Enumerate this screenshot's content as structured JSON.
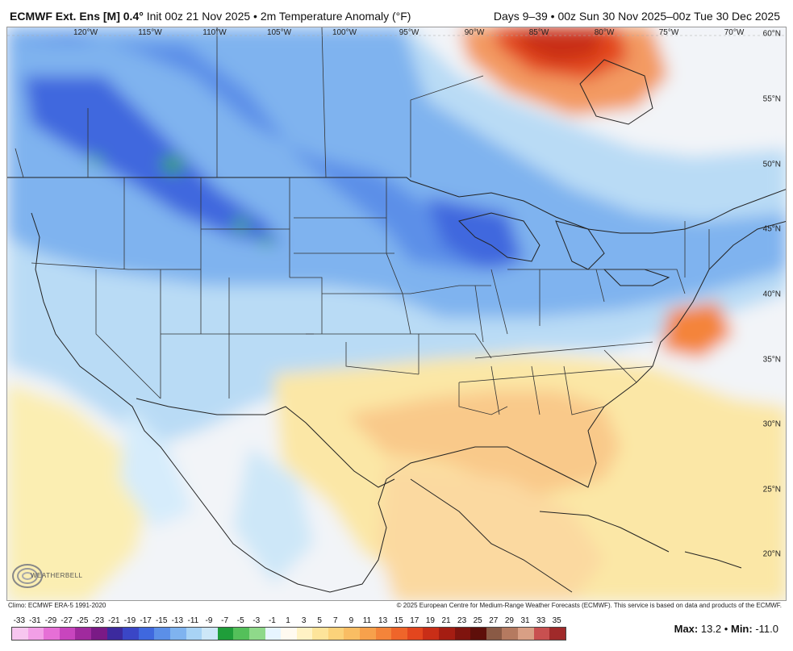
{
  "header": {
    "model": "ECMWF Ext. Ens [M] 0.4°",
    "run": "Init 00z 21 Nov 2025 • 2m Temperature Anomaly (°F)",
    "valid": "Days 9–39 • 00z Sun 30 Nov 2025–00z Tue 30 Dec 2025"
  },
  "map": {
    "lon_labels": [
      "120°W",
      "115°W",
      "110°W",
      "105°W",
      "100°W",
      "95°W",
      "90°W",
      "85°W",
      "80°W",
      "75°W",
      "70°W"
    ],
    "lat_labels": [
      "60°N",
      "55°N",
      "50°N",
      "45°N",
      "40°N",
      "35°N",
      "30°N",
      "25°N",
      "20°N"
    ],
    "logo_text": "WEATHERBELL"
  },
  "footer": {
    "climo": "Climo: ECMWF ERA-5 1991-2020",
    "copyright": "© 2025 European Centre for Medium-Range Weather Forecasts (ECMWF). This service is based on data and products of the ECMWF."
  },
  "scale": {
    "labels": [
      "-33",
      "-31",
      "-29",
      "-27",
      "-25",
      "-23",
      "-21",
      "-19",
      "-17",
      "-15",
      "-13",
      "-11",
      "-9",
      "-7",
      "-5",
      "-3",
      "-1",
      "1",
      "3",
      "5",
      "7",
      "9",
      "11",
      "13",
      "15",
      "17",
      "19",
      "21",
      "23",
      "25",
      "27",
      "29",
      "31",
      "33",
      "35"
    ],
    "colors": [
      "#f7c6ef",
      "#f29fe6",
      "#e66fd6",
      "#c845be",
      "#a02a9e",
      "#7a1a86",
      "#3c2a9e",
      "#3a46c6",
      "#3f68de",
      "#5b8fe8",
      "#7fb3ef",
      "#a8d3f5",
      "#cde7f8",
      "#1f9e3a",
      "#54c05a",
      "#8fd98a",
      "#e7f5ff",
      "#fffaf0",
      "#fff2c4",
      "#fde49a",
      "#fbd27a",
      "#f9bd63",
      "#f7a14c",
      "#f4843a",
      "#ef652a",
      "#e3461e",
      "#c92e17",
      "#a51d12",
      "#7f140e",
      "#5e0f0a",
      "#8a5a45",
      "#b57a60",
      "#d89f85",
      "#c85050",
      "#a02a2a"
    ],
    "max_label": "Max:",
    "max_value": "13.2",
    "min_label": "Min:",
    "min_value": "-11.0"
  }
}
